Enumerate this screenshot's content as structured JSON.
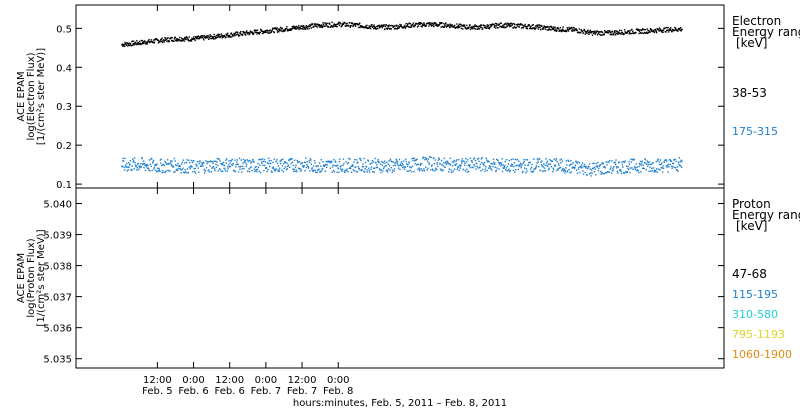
{
  "chart_data": [
    {
      "type": "scatter",
      "panel": "electron",
      "ylabel_lines": [
        "ACE EPAM",
        "log(Electron Flux)",
        "[1/(cm²s ster MeV)]"
      ],
      "yticks": [
        "0.1",
        "0.2",
        "0.3",
        "0.4",
        "0.5"
      ],
      "ylim": [
        0.09,
        0.56
      ],
      "legend_title": [
        "Electron",
        "Energy range",
        "[keV]"
      ],
      "series": [
        {
          "name": "38-53",
          "color": "#000000",
          "x": [
            0,
            6,
            12,
            18,
            24,
            30,
            36,
            42,
            48,
            54,
            60,
            66,
            72,
            78,
            84,
            90,
            96,
            102,
            108,
            114,
            120,
            126,
            132,
            138,
            144,
            150,
            156,
            162,
            168,
            174,
            180,
            186
          ],
          "values": [
            0.46,
            0.465,
            0.47,
            0.475,
            0.475,
            0.48,
            0.485,
            0.49,
            0.495,
            0.5,
            0.505,
            0.51,
            0.512,
            0.51,
            0.505,
            0.505,
            0.51,
            0.512,
            0.51,
            0.505,
            0.505,
            0.51,
            0.508,
            0.505,
            0.5,
            0.498,
            0.49,
            0.49,
            0.493,
            0.495,
            0.498,
            0.5
          ]
        },
        {
          "name": "175-315",
          "color": "#1f80d0",
          "x": [
            0,
            6,
            12,
            18,
            24,
            30,
            36,
            42,
            48,
            54,
            60,
            66,
            72,
            78,
            84,
            90,
            96,
            102,
            108,
            114,
            120,
            126,
            132,
            138,
            144,
            150,
            156,
            162,
            168,
            174,
            180,
            186
          ],
          "values": [
            0.15,
            0.152,
            0.148,
            0.15,
            0.145,
            0.15,
            0.152,
            0.148,
            0.15,
            0.15,
            0.152,
            0.148,
            0.15,
            0.15,
            0.15,
            0.148,
            0.15,
            0.155,
            0.15,
            0.15,
            0.152,
            0.15,
            0.148,
            0.15,
            0.15,
            0.145,
            0.14,
            0.145,
            0.148,
            0.15,
            0.15,
            0.152
          ]
        }
      ]
    },
    {
      "type": "scatter",
      "panel": "proton",
      "ylabel_lines": [
        "ACE EPAM",
        "log(Proton Flux)",
        "[1/(cm²s ster MeV)]"
      ],
      "yticks": [
        "5.035",
        "5.036",
        "5.037",
        "5.038",
        "5.039",
        "5.040"
      ],
      "ylim": [
        5.0347,
        5.0405
      ],
      "legend_title": [
        "Proton",
        "Energy range",
        "[keV]"
      ],
      "series": [
        {
          "name": "47-68",
          "color": "#000000",
          "x": [],
          "values": []
        },
        {
          "name": "115-195",
          "color": "#1f80d0",
          "x": [],
          "values": []
        },
        {
          "name": "310-580",
          "color": "#20d0d0",
          "x": [],
          "values": []
        },
        {
          "name": "795-1193",
          "color": "#d8d820",
          "x": [],
          "values": []
        },
        {
          "name": "1060-1900",
          "color": "#e08a10",
          "x": [],
          "values": []
        }
      ]
    }
  ],
  "xaxis": {
    "xlim_hours": [
      -15,
      200
    ],
    "ticks": [
      {
        "time": "12:00",
        "date": "Feb. 5",
        "hour": 12
      },
      {
        "time": "0:00",
        "date": "Feb. 6",
        "hour": 24
      },
      {
        "time": "12:00",
        "date": "Feb. 6",
        "hour": 36
      },
      {
        "time": "0:00",
        "date": "Feb. 7",
        "hour": 48
      },
      {
        "time": "12:00",
        "date": "Feb. 7",
        "hour": 60
      },
      {
        "time": "0:00",
        "date": "Feb. 8",
        "hour": 72
      }
    ],
    "title": "hours:minutes, Feb.  5, 2011 – Feb.  8, 2011"
  }
}
